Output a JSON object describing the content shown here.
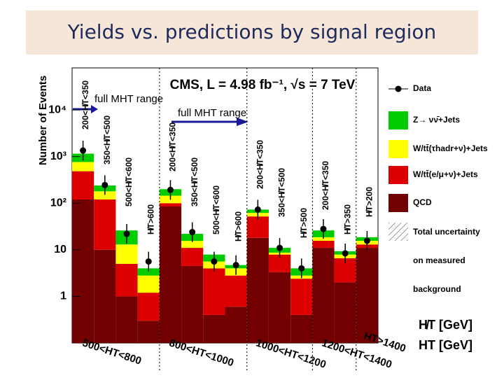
{
  "slide_title": "Yields vs. predictions by signal region",
  "chart_data": {
    "type": "bar",
    "stacked": true,
    "log_y": true,
    "title": "CMS, L = 4.98 fb⁻¹, √s = 7 TeV",
    "y_label": "Number of Events",
    "x_labels": [
      "H̸T [GeV]",
      "HT [GeV]"
    ],
    "categories": [
      "200<H̸T<350",
      "350<H̸T<500",
      "500<H̸T<600",
      "H̸T>600",
      "200<H̸T<350",
      "350<H̸T<500",
      "500<H̸T<600",
      "H̸T>600",
      "200<H̸T<350",
      "350<H̸T<500",
      "H̸T>500",
      "200<H̸T<350",
      "H̸T>350",
      "H̸T>200"
    ],
    "groups": [
      "500<HT<800",
      "800<HT<1000",
      "1000<HT<1200",
      "1200<HT<1400",
      "HT>1400"
    ],
    "annotations": [
      "full MHT range",
      "full MHT range"
    ],
    "series": [
      {
        "name": "QCD",
        "color": "#720000",
        "values": [
          120,
          10,
          1,
          0.3,
          85,
          4.5,
          0.4,
          0.6,
          18,
          3.3,
          0.4,
          11,
          2,
          11
        ]
      },
      {
        "name": "W/tt̄(e/μ+ν)+Jets",
        "color": "#dd0000",
        "values": [
          365,
          110,
          4,
          0.9,
          15,
          6.5,
          3.6,
          2.2,
          34,
          4.6,
          2,
          4.6,
          4.6,
          2
        ]
      },
      {
        "name": "W/tt̄(τhadr+ν)+Jets",
        "color": "#ffff00",
        "values": [
          280,
          60,
          8,
          1.6,
          45,
          4.5,
          1.6,
          1.2,
          10,
          0.8,
          0.4,
          3,
          1.3,
          2.6
        ]
      },
      {
        "name": "Z→ νν̄+Jets",
        "color": "#00cc00",
        "values": [
          390,
          60,
          13,
          1.2,
          55,
          6.5,
          2.3,
          0.7,
          11,
          2.3,
          1.2,
          7.4,
          1.4,
          3
        ]
      }
    ],
    "data": {
      "name": "Data",
      "color": "#000000",
      "values": [
        1350,
        245,
        22,
        5.6,
        193,
        24,
        5.6,
        4.7,
        73,
        11,
        4,
        28,
        8.4,
        15.6
      ]
    },
    "uncertainty_label": [
      "Total uncertainty",
      "on measured",
      "background"
    ],
    "ylim": [
      0.1,
      80000
    ],
    "yticks": [
      1,
      10,
      {
        "value": 100,
        "label": "10²"
      },
      {
        "value": 1000,
        "label": "10³"
      },
      {
        "value": 10000,
        "label": "10⁴"
      }
    ]
  }
}
